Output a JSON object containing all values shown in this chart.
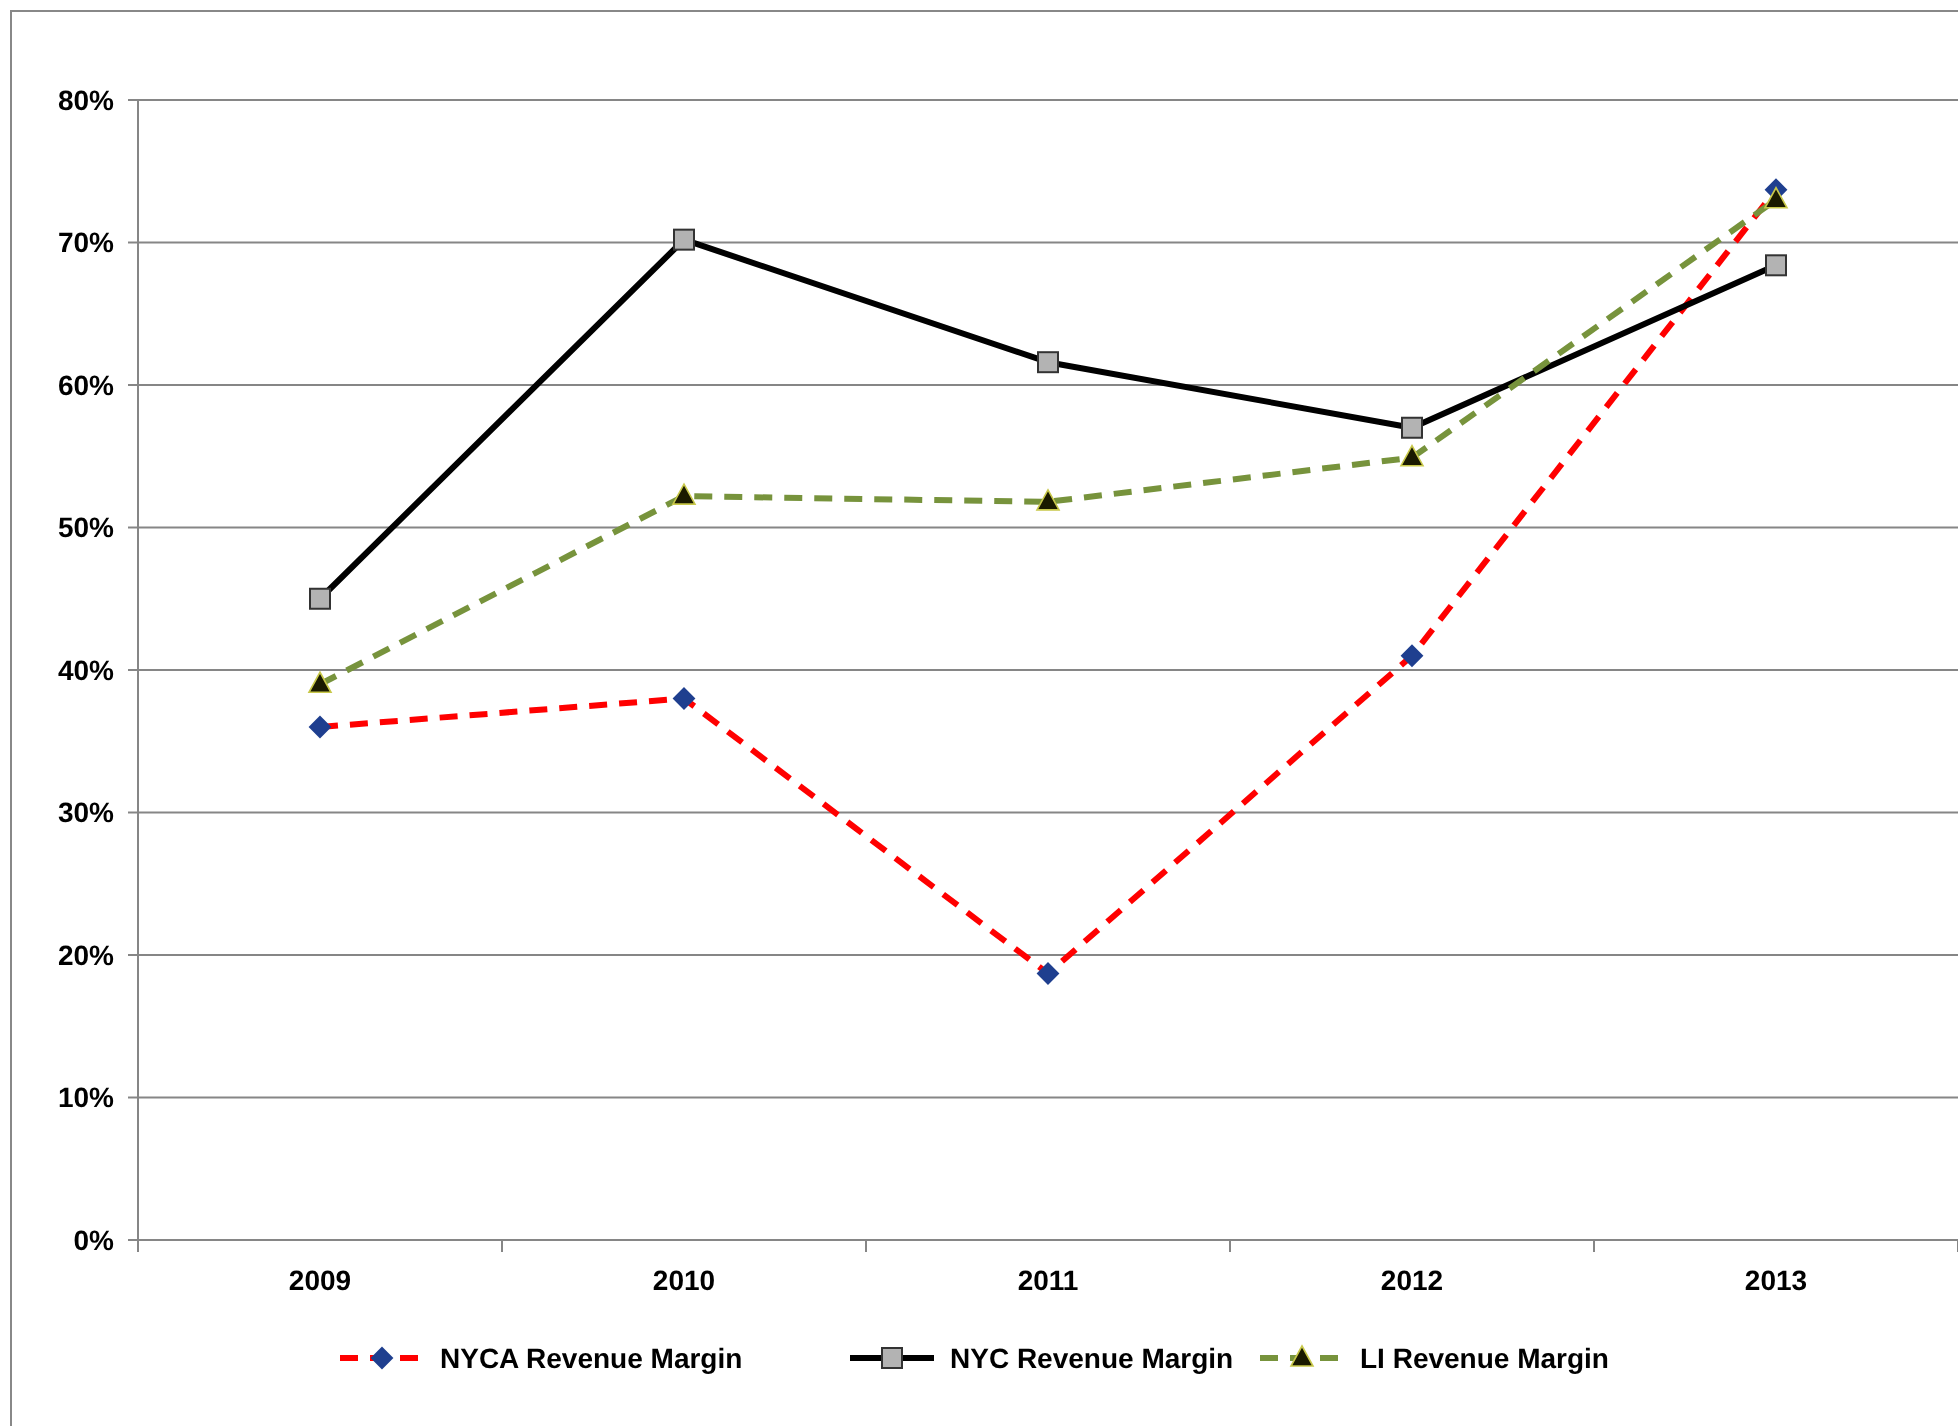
{
  "chart_data": {
    "type": "line",
    "categories": [
      "2009",
      "2010",
      "2011",
      "2012",
      "2013"
    ],
    "series": [
      {
        "name": "NYCA Revenue Margin",
        "color": "#ff0000",
        "values": [
          36,
          38,
          18.7,
          41,
          73.7
        ],
        "marker": "diamond",
        "line_style": "dashed"
      },
      {
        "name": "NYC Revenue Margin",
        "color": "#000000",
        "values": [
          45,
          70.2,
          61.6,
          57,
          68.4
        ],
        "marker": "square",
        "line_style": "solid"
      },
      {
        "name": "LI Revenue Margin",
        "color": "#77933c",
        "values": [
          39,
          52.2,
          51.8,
          54.9,
          73
        ],
        "marker": "triangle",
        "line_style": "dashed"
      }
    ],
    "ylim": [
      0,
      80
    ],
    "yticks": [
      {
        "value": 0,
        "label": "0%"
      },
      {
        "value": 10,
        "label": "10%"
      },
      {
        "value": 20,
        "label": "20%"
      },
      {
        "value": 30,
        "label": "30%"
      },
      {
        "value": 40,
        "label": "40%"
      },
      {
        "value": 50,
        "label": "50%"
      },
      {
        "value": 60,
        "label": "60%"
      },
      {
        "value": 70,
        "label": "70%"
      },
      {
        "value": 80,
        "label": "80%"
      }
    ],
    "grid": "y",
    "legend": "bottom"
  }
}
